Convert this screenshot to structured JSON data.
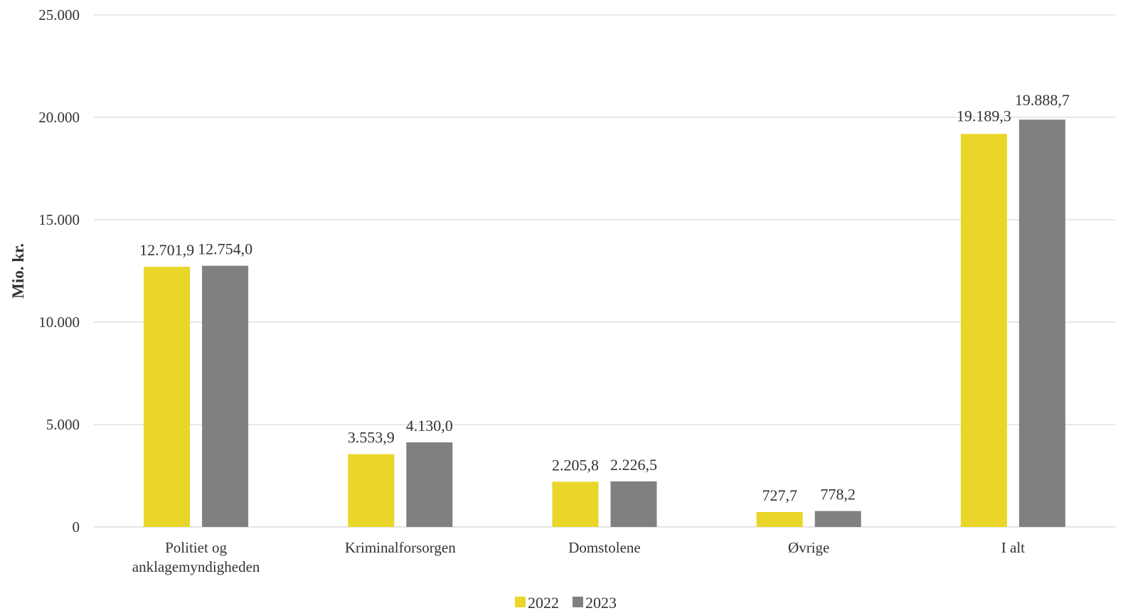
{
  "chart_data": {
    "type": "bar",
    "categories": [
      [
        "Politiet og",
        "anklagemyndigheden"
      ],
      [
        "Kriminalforsorgen"
      ],
      [
        "Domstolene"
      ],
      [
        "Øvrige"
      ],
      [
        "I alt"
      ]
    ],
    "series": [
      {
        "name": "2022",
        "color": "#E9D628",
        "values": [
          12701.9,
          3553.9,
          2205.8,
          727.7,
          19189.3
        ],
        "labels": [
          "12.701,9",
          "3.553,9",
          "2.205,8",
          "727,7",
          "19.189,3"
        ]
      },
      {
        "name": "2023",
        "color": "#808080",
        "values": [
          12754.0,
          4130.0,
          2226.5,
          778.2,
          19888.7
        ],
        "labels": [
          "12.754,0",
          "4.130,0",
          "2.226,5",
          "778,2",
          "19.888,7"
        ]
      }
    ],
    "ylabel": "Mio. kr.",
    "ylim": [
      0,
      25000
    ],
    "yticks": [
      0,
      5000,
      10000,
      15000,
      20000,
      25000
    ],
    "ytick_labels": [
      "0",
      "5.000",
      "10.000",
      "15.000",
      "20.000",
      "25.000"
    ],
    "grid": true,
    "legend_position": "bottom-center"
  }
}
